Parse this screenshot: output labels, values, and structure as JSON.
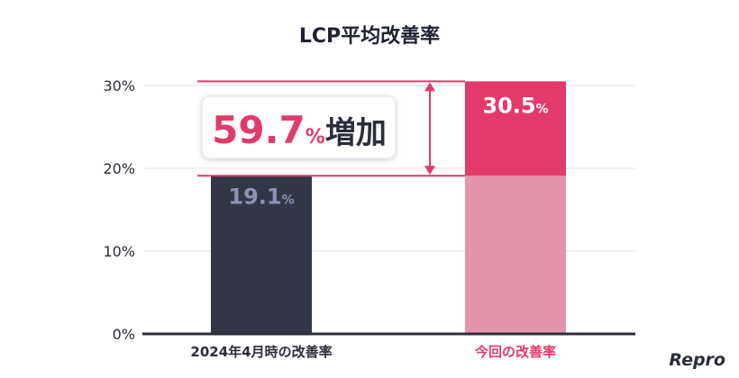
{
  "chart_data": {
    "type": "bar",
    "title": "LCP平均改善率",
    "categories": [
      "2024年4月時の改善率",
      "今回の改善率"
    ],
    "values": [
      19.1,
      30.5
    ],
    "value_labels": [
      {
        "number": "19.1",
        "unit": "%"
      },
      {
        "number": "30.5",
        "unit": "%"
      }
    ],
    "ylim": [
      0,
      30
    ],
    "yticks": [
      0,
      10,
      20,
      30
    ],
    "ytick_labels": [
      "0%",
      "10%",
      "20%",
      "30%"
    ],
    "xlabel": "",
    "ylabel": "",
    "grid": true,
    "annotation": {
      "number": "59.7",
      "unit": "%",
      "word": "増加",
      "from_value": 19.1,
      "to_value": 30.5
    }
  },
  "colors": {
    "bar_previous": "#333745",
    "bar_current_base": "#e592ab",
    "bar_current_increase": "#e43a69",
    "accent": "#e23a69",
    "previous_label": "#8c93b8",
    "current_label": "#ffffff",
    "category_previous": "#2b2e3a",
    "category_current": "#e23a69",
    "grid": "#e3e3e3",
    "axis": "#2b2e3a"
  },
  "logo": "Repro"
}
